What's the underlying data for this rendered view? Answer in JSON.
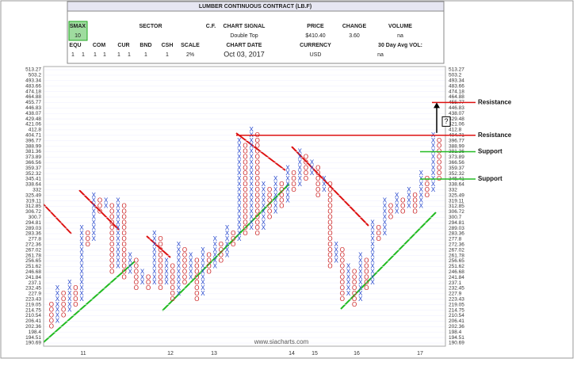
{
  "header": {
    "title": "LUMBER CONTINUOUS CONTRACT (LB.F)",
    "smax_label": "SMAX",
    "smax_value": 10,
    "sector_label": "SECTOR",
    "cf_label": "C.F.",
    "signal_label": "CHART SIGNAL",
    "signal_value": "Double Top",
    "price_label": "PRICE",
    "price_value": "$410.40",
    "change_label": "CHANGE",
    "change_value": "3.60",
    "volume_label": "VOLUME",
    "volume_value": "na",
    "asset_labels": [
      "EQU",
      "COM",
      "CUR",
      "BND",
      "CSH"
    ],
    "ones": [
      1,
      1,
      1,
      1,
      1,
      1,
      1,
      1
    ],
    "scale_label": "SCALE",
    "scale_value": "2%",
    "date_label": "CHART DATE",
    "date_value": "Oct 03, 2017",
    "currency_label": "CURRENCY",
    "currency_value": "USD",
    "avgvol_label": "30 Day Avg VOL:",
    "avgvol_value": "na"
  },
  "chart_data": {
    "type": "pnf",
    "log": true,
    "ylim": [
      190.69,
      513.27
    ],
    "yticks": [
      513.27,
      503.2,
      493.34,
      483.66,
      474.18,
      464.88,
      455.77,
      446.83,
      438.07,
      429.48,
      421.06,
      412.8,
      404.71,
      396.77,
      388.99,
      381.36,
      373.89,
      366.56,
      359.37,
      352.32,
      345.41,
      338.64,
      332.0,
      325.49,
      319.11,
      312.85,
      306.72,
      300.7,
      294.81,
      289.03,
      283.36,
      277.8,
      272.36,
      267.02,
      261.78,
      256.65,
      251.62,
      246.68,
      241.84,
      237.1,
      232.45,
      227.9,
      223.43,
      219.05,
      214.75,
      210.54,
      206.41,
      202.36,
      198.4,
      194.51,
      190.69
    ],
    "x_labels": [
      "11",
      "12",
      "13",
      "14",
      "15",
      "16",
      "17"
    ],
    "x_color": "#2244cc",
    "o_color": "#cc2222",
    "columns": [
      {
        "type": "O",
        "low": 202.36,
        "high": 219.05
      },
      {
        "type": "X",
        "low": 206.41,
        "high": 232.45
      },
      {
        "type": "O",
        "low": 210.54,
        "high": 227.9
      },
      {
        "type": "X",
        "low": 214.75,
        "high": 237.1
      },
      {
        "type": "O",
        "low": 219.05,
        "high": 232.45
      },
      {
        "type": "X",
        "low": 223.43,
        "high": 289.03
      },
      {
        "type": "O",
        "low": 272.36,
        "high": 283.36
      },
      {
        "type": "X",
        "low": 277.8,
        "high": 325.49
      },
      {
        "type": "O",
        "low": 306.72,
        "high": 319.11
      },
      {
        "type": "X",
        "low": 312.85,
        "high": 319.11
      },
      {
        "type": "O",
        "low": 246.68,
        "high": 312.85
      },
      {
        "type": "X",
        "low": 251.62,
        "high": 319.11
      },
      {
        "type": "O",
        "low": 241.84,
        "high": 312.85
      },
      {
        "type": "X",
        "low": 246.68,
        "high": 261.78
      },
      {
        "type": "O",
        "low": 232.45,
        "high": 256.65
      },
      {
        "type": "X",
        "low": 237.1,
        "high": 246.68
      },
      {
        "type": "O",
        "low": 232.45,
        "high": 241.84
      },
      {
        "type": "X",
        "low": 237.1,
        "high": 283.36
      },
      {
        "type": "O",
        "low": 232.45,
        "high": 277.8
      },
      {
        "type": "X",
        "low": 237.1,
        "high": 256.65
      },
      {
        "type": "O",
        "low": 223.43,
        "high": 251.62
      },
      {
        "type": "X",
        "low": 227.9,
        "high": 272.36
      },
      {
        "type": "O",
        "low": 237.1,
        "high": 267.02
      },
      {
        "type": "X",
        "low": 241.84,
        "high": 261.78
      },
      {
        "type": "O",
        "low": 223.43,
        "high": 256.65
      },
      {
        "type": "X",
        "low": 227.9,
        "high": 267.02
      },
      {
        "type": "O",
        "low": 246.68,
        "high": 261.78
      },
      {
        "type": "X",
        "low": 251.62,
        "high": 277.8
      },
      {
        "type": "O",
        "low": 256.65,
        "high": 272.36
      },
      {
        "type": "X",
        "low": 261.78,
        "high": 289.03
      },
      {
        "type": "O",
        "low": 272.36,
        "high": 283.36
      },
      {
        "type": "X",
        "low": 277.8,
        "high": 396.77
      },
      {
        "type": "O",
        "low": 283.36,
        "high": 388.99
      },
      {
        "type": "X",
        "low": 289.03,
        "high": 412.8
      },
      {
        "type": "O",
        "low": 283.36,
        "high": 404.71
      },
      {
        "type": "X",
        "low": 289.03,
        "high": 338.64
      },
      {
        "type": "O",
        "low": 300.7,
        "high": 332.0
      },
      {
        "type": "X",
        "low": 306.72,
        "high": 345.41
      },
      {
        "type": "O",
        "low": 312.85,
        "high": 338.64
      },
      {
        "type": "X",
        "low": 319.11,
        "high": 359.37
      },
      {
        "type": "O",
        "low": 332.0,
        "high": 352.32
      },
      {
        "type": "X",
        "low": 338.64,
        "high": 381.36
      },
      {
        "type": "O",
        "low": 345.41,
        "high": 373.89
      },
      {
        "type": "X",
        "low": 352.32,
        "high": 366.56
      },
      {
        "type": "O",
        "low": 325.49,
        "high": 359.37
      },
      {
        "type": "X",
        "low": 332.0,
        "high": 345.41
      },
      {
        "type": "O",
        "low": 251.62,
        "high": 338.64
      },
      {
        "type": "X",
        "low": 256.65,
        "high": 272.36
      },
      {
        "type": "O",
        "low": 223.43,
        "high": 267.02
      },
      {
        "type": "X",
        "low": 227.9,
        "high": 251.62
      },
      {
        "type": "O",
        "low": 219.05,
        "high": 246.68
      },
      {
        "type": "X",
        "low": 223.43,
        "high": 261.78
      },
      {
        "type": "O",
        "low": 232.45,
        "high": 256.65
      },
      {
        "type": "X",
        "low": 237.1,
        "high": 294.81
      },
      {
        "type": "O",
        "low": 277.8,
        "high": 289.03
      },
      {
        "type": "X",
        "low": 283.36,
        "high": 319.11
      },
      {
        "type": "O",
        "low": 300.7,
        "high": 312.85
      },
      {
        "type": "X",
        "low": 306.72,
        "high": 325.49
      },
      {
        "type": "O",
        "low": 306.72,
        "high": 319.11
      },
      {
        "type": "X",
        "low": 312.85,
        "high": 332.0
      },
      {
        "type": "O",
        "low": 306.72,
        "high": 325.49
      },
      {
        "type": "X",
        "low": 312.85,
        "high": 352.32
      },
      {
        "type": "O",
        "low": 325.49,
        "high": 345.41
      },
      {
        "type": "X",
        "low": 332.0,
        "high": 404.71
      },
      {
        "type": "O",
        "low": 345.41,
        "high": 396.77
      }
    ],
    "levels": [
      {
        "label": "Resistance",
        "value": 455.77,
        "color": "#dd1111"
      },
      {
        "label": "Resistance",
        "value": 404.71,
        "color": "#dd1111"
      },
      {
        "label": "Support",
        "value": 381.36,
        "color": "#22bb22"
      },
      {
        "label": "Support",
        "value": 345.41,
        "color": "#22bb22"
      }
    ],
    "question": "?",
    "watermark": "www.siacharts.com"
  }
}
